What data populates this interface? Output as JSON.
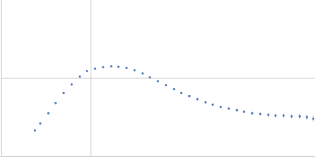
{
  "chart_data": {
    "type": "scatter",
    "color": "#3a66b0",
    "marker": "circle",
    "grid": true,
    "tick_labels": false,
    "xlim": [
      0,
      0.35
    ],
    "xticks": [
      0.1
    ],
    "ylim": [
      0,
      2
    ],
    "yticks": [
      1
    ],
    "x": [
      0.038,
      0.044,
      0.053,
      0.061,
      0.07,
      0.079,
      0.088,
      0.096,
      0.105,
      0.114,
      0.123,
      0.131,
      0.14,
      0.149,
      0.158,
      0.166,
      0.175,
      0.184,
      0.193,
      0.201,
      0.21,
      0.219,
      0.228,
      0.236,
      0.245,
      0.254,
      0.263,
      0.271,
      0.28,
      0.289,
      0.298,
      0.306,
      0.315,
      0.324,
      0.333,
      0.341,
      0.348
    ],
    "values": [
      0.33,
      0.42,
      0.55,
      0.68,
      0.81,
      0.92,
      1.02,
      1.09,
      1.12,
      1.14,
      1.15,
      1.145,
      1.13,
      1.1,
      1.06,
      1.01,
      0.96,
      0.91,
      0.86,
      0.81,
      0.77,
      0.73,
      0.69,
      0.66,
      0.63,
      0.61,
      0.59,
      0.57,
      0.55,
      0.54,
      0.53,
      0.52,
      0.52,
      0.51,
      0.51,
      0.5,
      0.48
    ],
    "errors": [
      0.004,
      0.004,
      0.004,
      0.004,
      0.004,
      0.004,
      0.005,
      0.005,
      0.005,
      0.005,
      0.005,
      0.006,
      0.006,
      0.006,
      0.007,
      0.007,
      0.008,
      0.008,
      0.009,
      0.01,
      0.01,
      0.011,
      0.012,
      0.013,
      0.014,
      0.015,
      0.016,
      0.017,
      0.019,
      0.02,
      0.022,
      0.024,
      0.026,
      0.028,
      0.03,
      0.033,
      0.036
    ]
  }
}
